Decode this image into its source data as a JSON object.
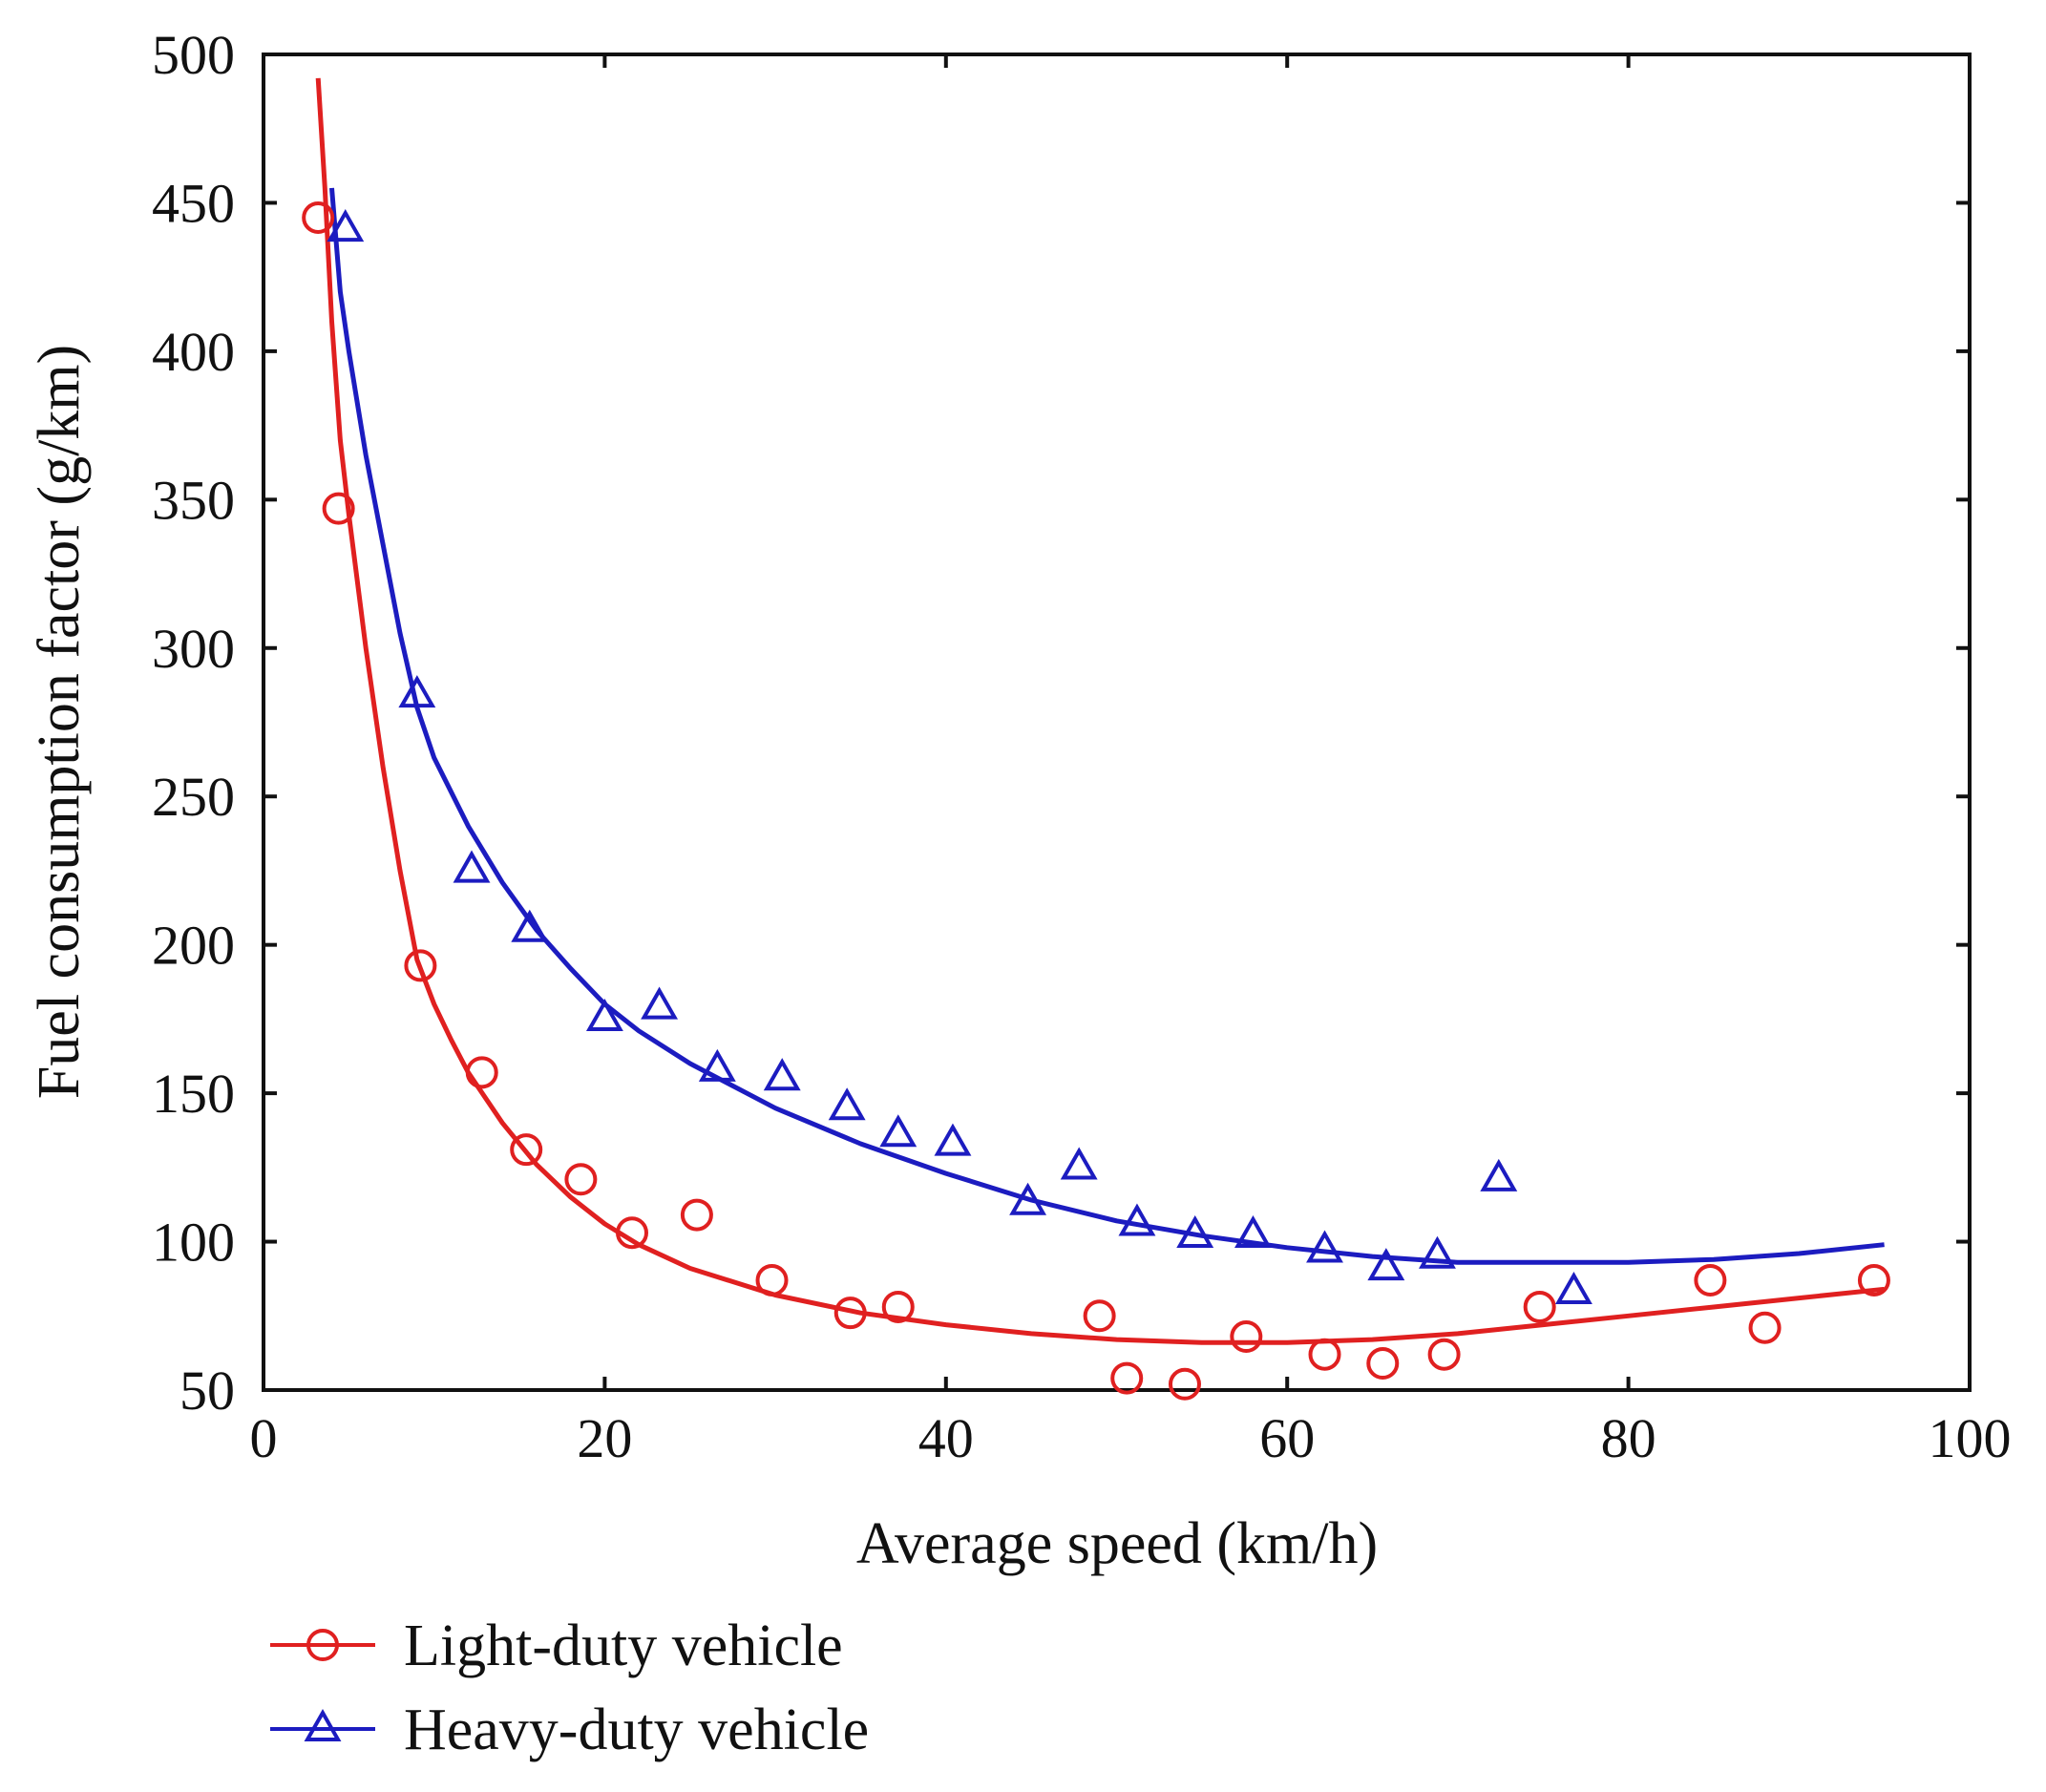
{
  "chart_data": {
    "type": "scatter",
    "title": "",
    "xlabel": "Average speed (km/h)",
    "ylabel": "Fuel consumption factor (g/km)",
    "xlim": [
      0,
      100
    ],
    "ylim": [
      50,
      500
    ],
    "x_ticks": [
      0,
      20,
      40,
      60,
      80,
      100
    ],
    "y_ticks": [
      50,
      100,
      150,
      200,
      250,
      300,
      350,
      400,
      450,
      500
    ],
    "x_tick_labels": [
      "0",
      "20",
      "40",
      "60",
      "80",
      "100"
    ],
    "y_tick_labels": [
      "50",
      "100",
      "150",
      "200",
      "250",
      "300",
      "350",
      "400",
      "450",
      "500"
    ],
    "grid": false,
    "legend_position": "bottom-left, below axes",
    "series": [
      {
        "name": "Light-duty vehicle",
        "color": "#e02020",
        "marker": "circle",
        "points": [
          [
            3.2,
            445
          ],
          [
            4.4,
            347
          ],
          [
            9.2,
            193
          ],
          [
            12.8,
            157
          ],
          [
            15.4,
            131
          ],
          [
            18.6,
            121
          ],
          [
            21.6,
            103
          ],
          [
            25.4,
            109
          ],
          [
            29.8,
            87
          ],
          [
            34.4,
            76
          ],
          [
            37.2,
            78
          ],
          [
            49.0,
            75
          ],
          [
            50.6,
            54
          ],
          [
            54.0,
            52
          ],
          [
            57.6,
            68
          ],
          [
            62.2,
            62
          ],
          [
            65.6,
            59
          ],
          [
            69.2,
            62
          ],
          [
            74.8,
            78
          ],
          [
            84.8,
            87
          ],
          [
            88.0,
            71
          ],
          [
            94.4,
            87
          ]
        ],
        "fit_curve": [
          [
            3.2,
            492
          ],
          [
            3.6,
            455
          ],
          [
            4.0,
            410
          ],
          [
            4.5,
            370
          ],
          [
            5.0,
            345
          ],
          [
            6.0,
            300
          ],
          [
            7.0,
            260
          ],
          [
            8.0,
            225
          ],
          [
            9.0,
            195
          ],
          [
            10.0,
            180
          ],
          [
            11.0,
            168
          ],
          [
            12.0,
            157
          ],
          [
            14.0,
            140
          ],
          [
            16.0,
            126
          ],
          [
            18.0,
            115
          ],
          [
            20.0,
            106
          ],
          [
            22.0,
            99
          ],
          [
            25.0,
            91
          ],
          [
            30.0,
            82
          ],
          [
            35.0,
            76
          ],
          [
            40.0,
            72
          ],
          [
            45.0,
            69
          ],
          [
            50.0,
            67
          ],
          [
            55.0,
            66
          ],
          [
            60.0,
            66
          ],
          [
            65.0,
            67
          ],
          [
            70.0,
            69
          ],
          [
            75.0,
            72
          ],
          [
            80.0,
            75
          ],
          [
            85.0,
            78
          ],
          [
            90.0,
            81
          ],
          [
            95.0,
            84
          ]
        ]
      },
      {
        "name": "Heavy-duty vehicle",
        "color": "#1c1cc0",
        "marker": "triangle",
        "points": [
          [
            4.8,
            441
          ],
          [
            9.0,
            284
          ],
          [
            12.2,
            225
          ],
          [
            15.6,
            205
          ],
          [
            20.0,
            175
          ],
          [
            23.2,
            179
          ],
          [
            26.6,
            158
          ],
          [
            30.4,
            155
          ],
          [
            34.2,
            145
          ],
          [
            37.2,
            136
          ],
          [
            40.4,
            133
          ],
          [
            44.8,
            113
          ],
          [
            47.8,
            125
          ],
          [
            51.2,
            106
          ],
          [
            54.6,
            102
          ],
          [
            58.0,
            102
          ],
          [
            62.2,
            97
          ],
          [
            65.8,
            91
          ],
          [
            68.8,
            95
          ],
          [
            72.4,
            121
          ],
          [
            76.8,
            83
          ]
        ],
        "fit_curve": [
          [
            4.0,
            455
          ],
          [
            4.5,
            420
          ],
          [
            5.0,
            400
          ],
          [
            6.0,
            365
          ],
          [
            7.0,
            335
          ],
          [
            8.0,
            305
          ],
          [
            9.0,
            280
          ],
          [
            10.0,
            263
          ],
          [
            12.0,
            240
          ],
          [
            14.0,
            221
          ],
          [
            16.0,
            205
          ],
          [
            18.0,
            192
          ],
          [
            20.0,
            180
          ],
          [
            22.0,
            171
          ],
          [
            25.0,
            160
          ],
          [
            30.0,
            145
          ],
          [
            35.0,
            133
          ],
          [
            40.0,
            123
          ],
          [
            45.0,
            114
          ],
          [
            50.0,
            107
          ],
          [
            55.0,
            102
          ],
          [
            60.0,
            98
          ],
          [
            65.0,
            95
          ],
          [
            70.0,
            93
          ],
          [
            75.0,
            93
          ],
          [
            80.0,
            93
          ],
          [
            85.0,
            94
          ],
          [
            90.0,
            96
          ],
          [
            95.0,
            99
          ]
        ]
      }
    ]
  }
}
